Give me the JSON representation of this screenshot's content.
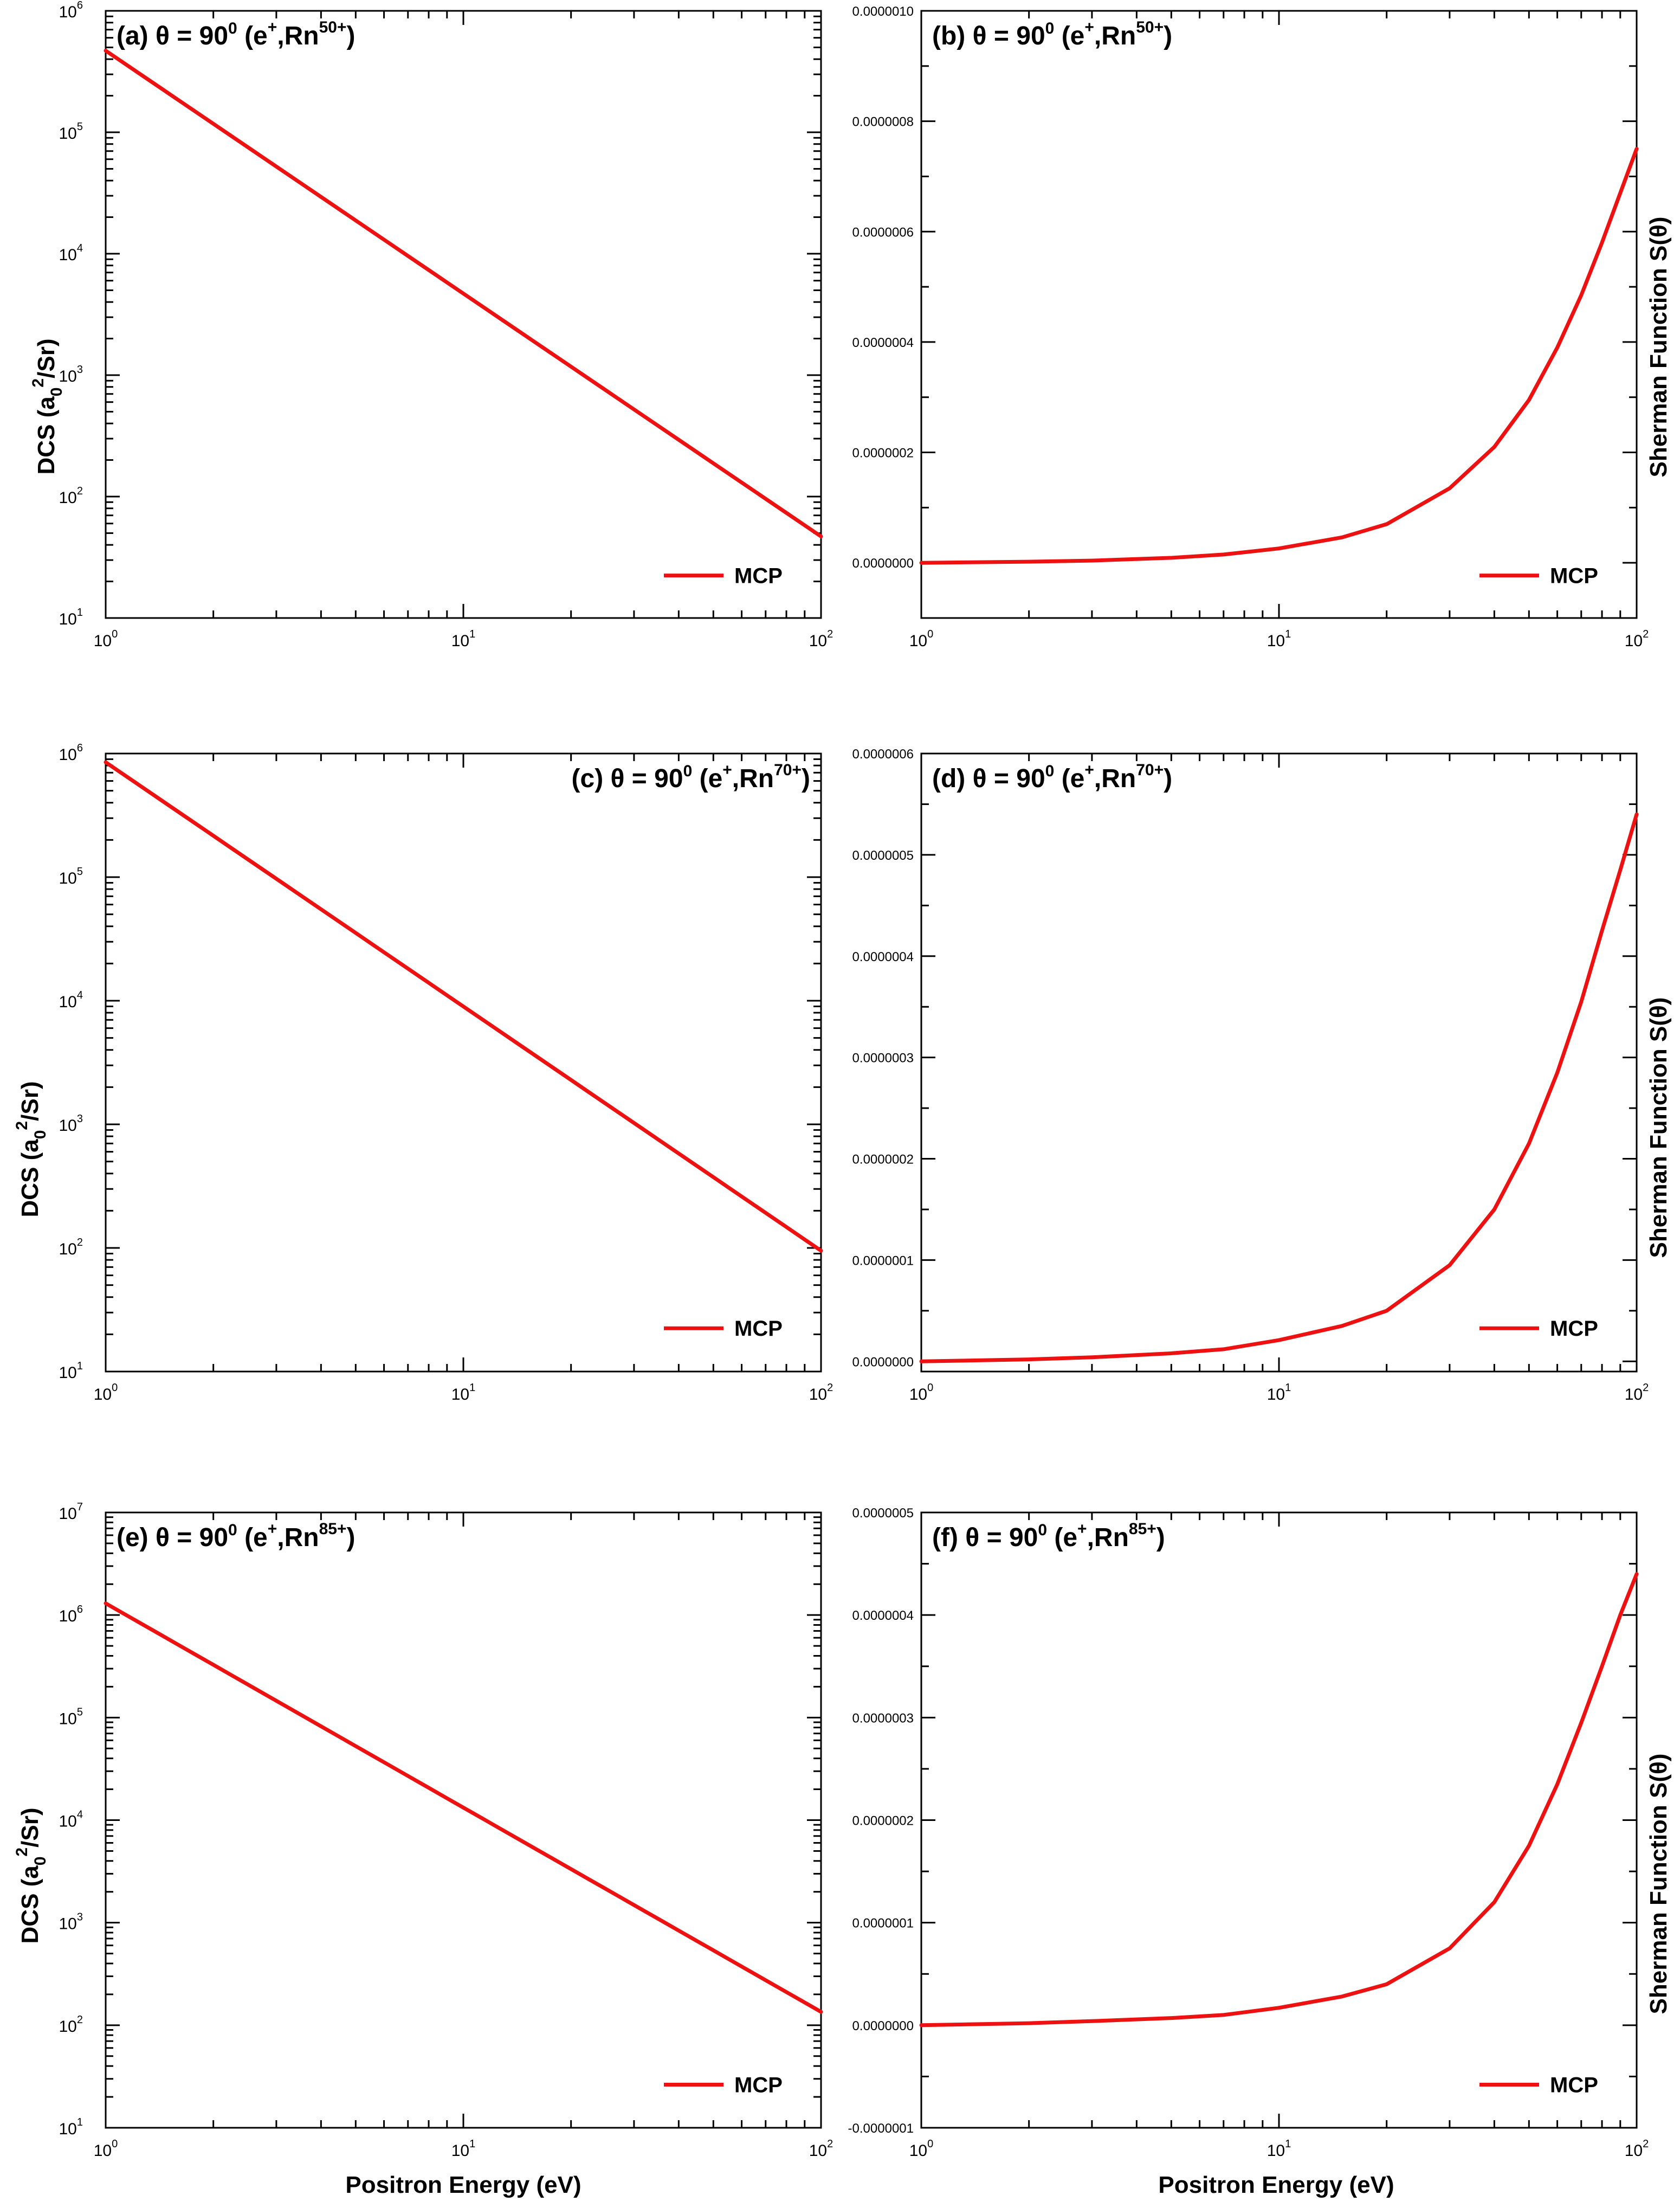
{
  "figure": {
    "xlabel": "Positron Energy (eV)",
    "ylabel_left": "DCS (a",
    "ylabel_left_sub": "0",
    "ylabel_left_sup": "2",
    "ylabel_left_tail": "/Sr)",
    "ylabel_right": "Sherman Function S(θ)",
    "x_tick_base": "10",
    "x_tick_exponents": [
      "0",
      "1",
      "2"
    ]
  },
  "colors": {
    "curve": "#ee1111",
    "axes": "#000000",
    "background": "#ffffff"
  },
  "chart_data": [
    {
      "id": "a",
      "type": "line",
      "yscale": "log",
      "xscale": "log",
      "title_prefix": "(a) θ = 90",
      "title_deg": "0",
      "title_ion_open": " (e",
      "title_ion_sup": "+",
      "title_ion_mid": ",Rn",
      "title_charge": "50+",
      "title_close": ")",
      "xlim": [
        1,
        100
      ],
      "ylim": [
        10,
        1000000
      ],
      "y_ticks": [
        10,
        100,
        1000,
        10000,
        100000,
        1000000
      ],
      "y_tick_base": "10",
      "y_tick_exponents": [
        "1",
        "2",
        "3",
        "4",
        "5",
        "6"
      ],
      "series": [
        {
          "name": "MCP",
          "x": [
            1,
            100
          ],
          "values": [
            470000,
            47
          ]
        }
      ],
      "legend": "MCP"
    },
    {
      "id": "b",
      "type": "line",
      "yscale": "linear",
      "xscale": "log",
      "title_prefix": "(b) θ = 90",
      "title_deg": "0",
      "title_ion_open": " (e",
      "title_ion_sup": "+",
      "title_ion_mid": ",Rn",
      "title_charge": "50+",
      "title_close": ")",
      "xlim": [
        1,
        100
      ],
      "ylim": [
        -1e-07,
        1e-06
      ],
      "y_ticks": [
        0,
        2e-07,
        4e-07,
        6e-07,
        8e-07,
        1e-06
      ],
      "y_tick_labels": [
        "0.0000000",
        "0.0000002",
        "0.0000004",
        "0.0000006",
        "0.0000008",
        "0.0000010"
      ],
      "series": [
        {
          "name": "MCP",
          "x": [
            1,
            2,
            3,
            5,
            7,
            10,
            15,
            20,
            30,
            40,
            50,
            60,
            70,
            80,
            90,
            100
          ],
          "values": [
            0,
            2e-09,
            4e-09,
            9e-09,
            1.5e-08,
            2.6e-08,
            4.6e-08,
            7e-08,
            1.35e-07,
            2.1e-07,
            2.95e-07,
            3.9e-07,
            4.85e-07,
            5.8e-07,
            6.7e-07,
            7.5e-07
          ]
        }
      ],
      "legend": "MCP"
    },
    {
      "id": "c",
      "type": "line",
      "yscale": "log",
      "xscale": "log",
      "title_prefix": "(c) θ = 90",
      "title_deg": "0",
      "title_ion_open": " (e",
      "title_ion_sup": "+",
      "title_ion_mid": ",Rn",
      "title_charge": "70+",
      "title_close": ")",
      "xlim": [
        1,
        100
      ],
      "ylim": [
        10,
        1000000
      ],
      "y_ticks": [
        10,
        100,
        1000,
        10000,
        100000,
        1000000
      ],
      "y_tick_base": "10",
      "y_tick_exponents": [
        "1",
        "2",
        "3",
        "4",
        "5",
        "6"
      ],
      "series": [
        {
          "name": "MCP",
          "x": [
            1,
            100
          ],
          "values": [
            850000,
            95
          ]
        }
      ],
      "legend": "MCP"
    },
    {
      "id": "d",
      "type": "line",
      "yscale": "linear",
      "xscale": "log",
      "title_prefix": "(d) θ = 90",
      "title_deg": "0",
      "title_ion_open": " (e",
      "title_ion_sup": "+",
      "title_ion_mid": ",Rn",
      "title_charge": "70+",
      "title_close": ")",
      "xlim": [
        1,
        100
      ],
      "ylim": [
        -1e-08,
        6e-07
      ],
      "y_ticks": [
        0,
        1e-07,
        2e-07,
        3e-07,
        4e-07,
        5e-07,
        6e-07
      ],
      "y_tick_labels": [
        "0.0000000",
        "0.0000001",
        "0.0000002",
        "0.0000003",
        "0.0000004",
        "0.0000005",
        "0.0000006"
      ],
      "series": [
        {
          "name": "MCP",
          "x": [
            1,
            2,
            3,
            5,
            7,
            10,
            15,
            20,
            30,
            40,
            50,
            60,
            70,
            80,
            90,
            100
          ],
          "values": [
            0,
            2e-09,
            4e-09,
            8e-09,
            1.2e-08,
            2.1e-08,
            3.5e-08,
            5e-08,
            9.5e-08,
            1.5e-07,
            2.15e-07,
            2.85e-07,
            3.55e-07,
            4.25e-07,
            4.85e-07,
            5.4e-07
          ]
        }
      ],
      "legend": "MCP"
    },
    {
      "id": "e",
      "type": "line",
      "yscale": "log",
      "xscale": "log",
      "title_prefix": "(e) θ = 90",
      "title_deg": "0",
      "title_ion_open": " (e",
      "title_ion_sup": "+",
      "title_ion_mid": ",Rn",
      "title_charge": "85+",
      "title_close": ")",
      "xlim": [
        1,
        100
      ],
      "ylim": [
        10,
        10000000
      ],
      "y_ticks": [
        10,
        100,
        1000,
        10000,
        100000,
        1000000,
        10000000
      ],
      "y_tick_base": "10",
      "y_tick_exponents": [
        "1",
        "2",
        "3",
        "4",
        "5",
        "6",
        "7"
      ],
      "series": [
        {
          "name": "MCP",
          "x": [
            1,
            100
          ],
          "values": [
            1300000,
            135
          ]
        }
      ],
      "legend": "MCP"
    },
    {
      "id": "f",
      "type": "line",
      "yscale": "linear",
      "xscale": "log",
      "title_prefix": "(f) θ = 90",
      "title_deg": "0",
      "title_ion_open": " (e",
      "title_ion_sup": "+",
      "title_ion_mid": ",Rn",
      "title_charge": "85+",
      "title_close": ")",
      "xlim": [
        1,
        100
      ],
      "ylim": [
        -1e-07,
        5e-07
      ],
      "y_ticks": [
        -1e-07,
        0,
        1e-07,
        2e-07,
        3e-07,
        4e-07,
        5e-07
      ],
      "y_tick_labels": [
        "-0.0000001",
        "0.0000000",
        "0.0000001",
        "0.0000002",
        "0.0000003",
        "0.0000004",
        "0.0000005"
      ],
      "series": [
        {
          "name": "MCP",
          "x": [
            1,
            2,
            3,
            5,
            7,
            10,
            15,
            20,
            30,
            40,
            50,
            60,
            70,
            80,
            90,
            100
          ],
          "values": [
            0,
            2e-09,
            4e-09,
            7e-09,
            1e-08,
            1.7e-08,
            2.8e-08,
            4e-08,
            7.5e-08,
            1.2e-07,
            1.75e-07,
            2.35e-07,
            2.95e-07,
            3.5e-07,
            4e-07,
            4.4e-07
          ]
        }
      ],
      "legend": "MCP"
    }
  ]
}
